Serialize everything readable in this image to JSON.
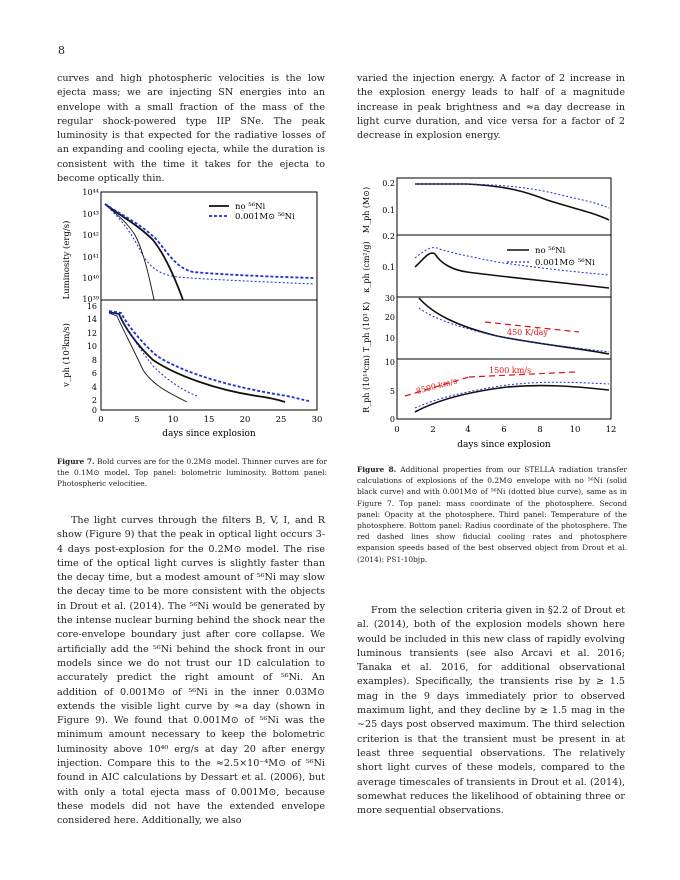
{
  "page_number": "8",
  "left_top_text": "curves and high photospheric velocities is the low ejecta mass; we are injecting SN energies into an envelope with a small fraction of the mass of the regular shock-powered type IIP SNe. The peak luminosity is that expected for the radiative losses of an expanding and cooling ejecta, while the duration is consistent with the time it takes for the ejecta to become optically thin.",
  "right_top_text": "varied the injection energy. A factor of 2 increase in the explosion energy leads to half of a magnitude increase in peak brightness and ≈a day decrease in light curve duration, and vice versa for a factor of 2 decrease in explosion energy.",
  "fig7": {
    "caption_label": "Figure 7.",
    "caption_text": "Bold curves are for the 0.2M⊙ model. Thinner curves are for the 0.1M⊙ model. Top panel: bolometric luminosity. Bottom panel: Photospheric velocitiee.",
    "xlabel": "days since explosion",
    "ylabel_top": "Luminosity (erg/s)",
    "ylabel_bottom": "v_ph (10³km/s)",
    "legend": [
      "no ⁵⁶Ni",
      "0.001M⊙ ⁵⁶Ni"
    ],
    "x_ticks": [
      "0",
      "5",
      "10",
      "15",
      "20",
      "25",
      "30"
    ],
    "y_ticks_top": [
      "10³⁹",
      "10⁴⁰",
      "10⁴¹",
      "10⁴²",
      "10⁴³",
      "10⁴⁴"
    ],
    "y_ticks_bottom": [
      "0",
      "2",
      "4",
      "6",
      "8",
      "10",
      "12",
      "14",
      "16"
    ]
  },
  "fig8": {
    "caption_label": "Figure 8.",
    "caption_text": "Additional properties from our STELLA radiation transfer calculations of explosions of the 0.2M⊙ envelope with no ⁵⁶Ni (solid black curve) and with 0.001M⊙ of ⁵⁶Ni (dotted blue curve), same as in Figure 7. Top panel: mass coordinate of the photosphere. Second panel: Opacity at the photosphere. Third panel: Temperature of the photosphere. Bottom panel: Radius coordinate of the photosphere. The red dashed lines show fiducial cooling rates and photosphere expansion speeds based of the best observed object from Drout et al. (2014): PS1-10bjp.",
    "xlabel": "days since explosion",
    "ylabels": [
      "M_ph (M⊙)",
      "κ_ph (cm²/g)",
      "T_ph (10³ K)",
      "R_ph (10¹⁴cm)"
    ],
    "legend": [
      "no ⁵⁶Ni",
      "0.001M⊙ ⁵⁶Ni"
    ],
    "x_ticks": [
      "0",
      "2",
      "4",
      "6",
      "8",
      "10",
      "12"
    ],
    "annotations": [
      "450 K/day",
      "1500 km/s",
      "8500 km/s"
    ],
    "y_ticks": [
      [
        "0.1",
        "0.2"
      ],
      [
        "0.1",
        "0.2"
      ],
      [
        "10",
        "20",
        "30"
      ],
      [
        "0",
        "5",
        "10"
      ]
    ]
  },
  "left_bottom_paras": [
    "The light curves through the filters B, V, I, and R show (Figure 9) that the peak in optical light occurs 3-4 days post-explosion for the 0.2M⊙ model. The rise time of the optical light curves is slightly faster than the decay time, but a modest amount of ⁵⁶Ni may slow the decay time to be more consistent with the objects in Drout et al. (2014). The ⁵⁶Ni would be generated by the intense nuclear burning behind the shock near the core-envelope boundary just after core collapse. We artificially add the ⁵⁶Ni behind the shock front in our models since we do not trust our 1D calculation to accurately predict the right amount of ⁵⁶Ni. An addition of 0.001M⊙ of ⁵⁶Ni in the inner 0.03M⊙ extends the visible light curve by ≈a day (shown in Figure 9). We found that 0.001M⊙ of ⁵⁶Ni was the minimum amount necessary to keep the bolometric luminosity above 10⁴⁰ erg/s at day 20 after energy injection. Compare this to the ≈2.5×10⁻⁴M⊙ of ⁵⁶Ni found in AIC calculations by Dessart et al. (2006), but with only a total ejecta mass of 0.001M⊙, because these models did not have the extended envelope considered here. Additionally, we also"
  ],
  "right_bottom_paras": [
    "From the selection criteria given in §2.2 of Drout et al. (2014), both of the explosion models shown here would be included in this new class of rapidly evolving luminous transients (see also Arcavi et al. 2016; Tanaka et al. 2016, for additional observational examples). Specifically, the transients rise by ≳ 1.5 mag in the 9 days immediately prior to observed maximum light, and they decline by ≳ 1.5 mag in the ∼25 days post observed maximum. The third selection criterion is that the transient must be present in at least three sequential observations. The relatively short light curves of these models, compared to the average timescales of transients in Drout et al. (2014), somewhat reduces the likelihood of obtaining three or more sequential observations."
  ]
}
